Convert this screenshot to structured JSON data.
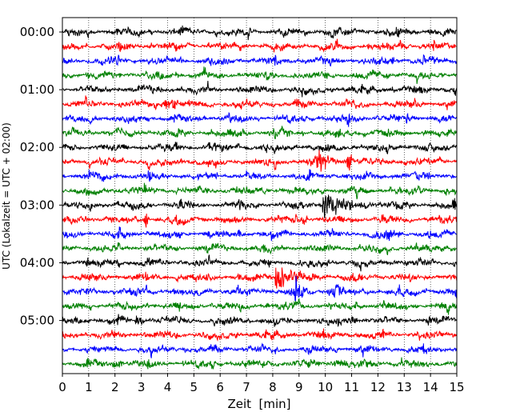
{
  "chart_data": {
    "type": "line",
    "title": "",
    "xlabel": "Zeit  [min]",
    "ylabel": "UTC (Lokalzeit = UTC + 02:00)",
    "xlim": [
      0,
      15
    ],
    "x_ticks": [
      "0",
      "1",
      "2",
      "3",
      "4",
      "5",
      "6",
      "7",
      "8",
      "9",
      "10",
      "11",
      "12",
      "13",
      "14",
      "15"
    ],
    "y_ticks": [
      "00:00",
      "01:00",
      "02:00",
      "03:00",
      "04:00",
      "05:00"
    ],
    "trace_interval_minutes": 15,
    "trace_count": 24,
    "trace_colors": [
      "#000000",
      "#ff0000",
      "#0000ff",
      "#008000"
    ],
    "grid": "vertical dotted",
    "events": [
      {
        "trace": 0,
        "at_min": 0.3,
        "amp": 0.2,
        "dur": 0.3,
        "kind": "burst"
      },
      {
        "trace": 5,
        "at_min": 4.1,
        "amp": 0.55,
        "dur": 0.9,
        "kind": "burst"
      },
      {
        "trace": 6,
        "at_min": 10.9,
        "amp": 0.35,
        "dur": 0.9,
        "kind": "burst"
      },
      {
        "trace": 8,
        "at_min": 6.0,
        "amp": 0.3,
        "dur": 0.6,
        "kind": "burst"
      },
      {
        "trace": 9,
        "at_min": 9.8,
        "amp": 1.5,
        "dur": 1.2,
        "kind": "spike"
      },
      {
        "trace": 9,
        "at_min": 10.9,
        "amp": 1.2,
        "dur": 0.6,
        "kind": "spike"
      },
      {
        "trace": 12,
        "at_min": 9.9,
        "amp": 1.4,
        "dur": 2.6,
        "kind": "quake"
      },
      {
        "trace": 13,
        "at_min": 3.2,
        "amp": 1.0,
        "dur": 0.3,
        "kind": "spike"
      },
      {
        "trace": 13,
        "at_min": 9.2,
        "amp": 0.5,
        "dur": 0.4,
        "kind": "burst"
      },
      {
        "trace": 14,
        "at_min": 12.4,
        "amp": 0.45,
        "dur": 0.6,
        "kind": "burst"
      },
      {
        "trace": 17,
        "at_min": 8.1,
        "amp": 1.4,
        "dur": 2.1,
        "kind": "quake"
      },
      {
        "trace": 18,
        "at_min": 8.9,
        "amp": 1.7,
        "dur": 0.6,
        "kind": "spike"
      },
      {
        "trace": 18,
        "at_min": 10.4,
        "amp": 0.6,
        "dur": 0.8,
        "kind": "burst"
      },
      {
        "trace": 20,
        "at_min": 2.9,
        "amp": 0.35,
        "dur": 0.5,
        "kind": "burst"
      },
      {
        "trace": 20,
        "at_min": 11.0,
        "amp": 0.45,
        "dur": 0.6,
        "kind": "burst"
      },
      {
        "trace": 23,
        "at_min": 2.1,
        "amp": 0.4,
        "dur": 0.6,
        "kind": "burst"
      },
      {
        "trace": 23,
        "at_min": 10.5,
        "amp": 0.4,
        "dur": 0.8,
        "kind": "burst"
      }
    ]
  }
}
